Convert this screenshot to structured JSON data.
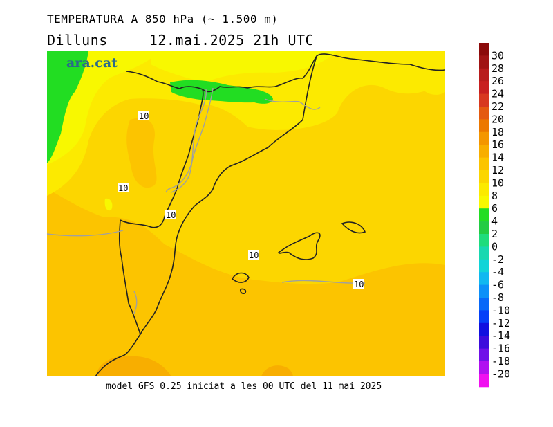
{
  "header": {
    "title": "TEMPERATURA A 850 hPa (~ 1.500 m)",
    "weekday": "Dilluns",
    "datetime": "12.mai.2025 21h UTC"
  },
  "map": {
    "logo": "ara.cat",
    "contour_labels": [
      "10",
      "10",
      "10",
      "10",
      "10"
    ]
  },
  "footer": {
    "text": "model GFS 0.25 iniciat a les 00 UTC del 11 mai 2025"
  },
  "legend": {
    "labels": [
      "30",
      "28",
      "26",
      "24",
      "22",
      "20",
      "18",
      "16",
      "14",
      "12",
      "10",
      "8",
      "6",
      "4",
      "2",
      "0",
      "-2",
      "-4",
      "-6",
      "-8",
      "-10",
      "-12",
      "-14",
      "-16",
      "-18",
      "-20"
    ],
    "colors": [
      "#8b0a0a",
      "#a01414",
      "#b81c1c",
      "#c82020",
      "#d83820",
      "#e45a10",
      "#ec7800",
      "#f49600",
      "#f8ae00",
      "#fcc400",
      "#fcd600",
      "#fcea00",
      "#f8f800",
      "#22dd22",
      "#22cc44",
      "#1edc7c",
      "#18d8b0",
      "#10d4d8",
      "#10b8f0",
      "#0c90f8",
      "#0868f8",
      "#0440f8",
      "#1010e0",
      "#3c0cdc",
      "#7010e8",
      "#b010f0",
      "#f010f0"
    ]
  }
}
